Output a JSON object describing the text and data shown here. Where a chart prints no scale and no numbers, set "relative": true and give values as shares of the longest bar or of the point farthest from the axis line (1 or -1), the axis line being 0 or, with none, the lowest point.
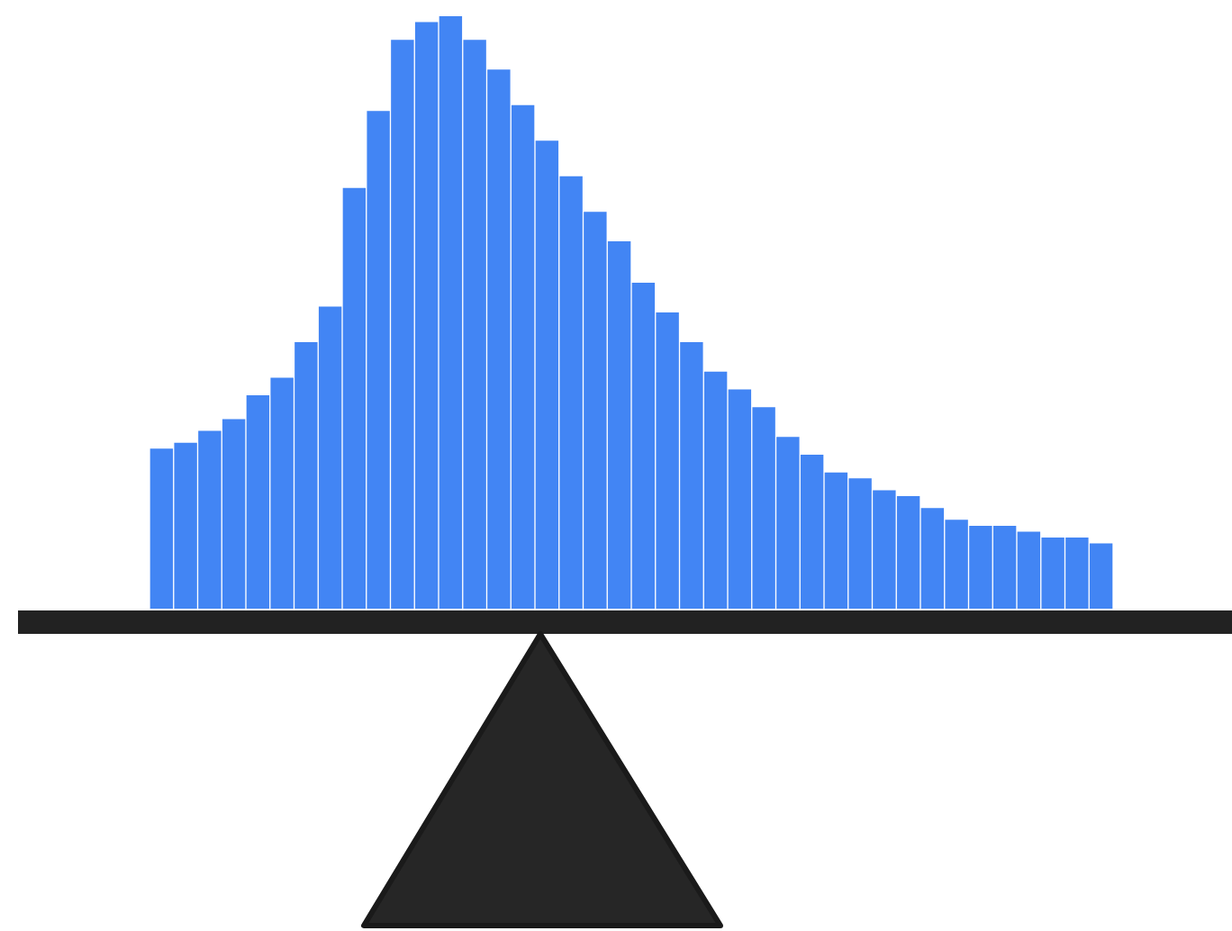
{
  "chart_data": {
    "type": "bar",
    "relative": true,
    "categories": [
      null,
      null,
      null,
      null,
      null,
      null,
      null,
      null,
      null,
      null,
      null,
      null,
      null,
      null,
      null,
      null,
      null,
      null,
      null,
      null,
      null,
      null,
      null,
      null,
      null,
      null,
      null,
      null,
      null,
      null,
      null,
      null,
      null,
      null,
      null,
      null,
      null,
      null,
      null,
      null
    ],
    "values": [
      0.27,
      0.28,
      0.3,
      0.32,
      0.36,
      0.39,
      0.45,
      0.51,
      0.71,
      0.84,
      0.96,
      0.99,
      1,
      0.96,
      0.91,
      0.85,
      0.79,
      0.73,
      0.67,
      0.62,
      0.55,
      0.5,
      0.45,
      0.4,
      0.37,
      0.34,
      0.29,
      0.26,
      0.23,
      0.22,
      0.2,
      0.19,
      0.17,
      0.15,
      0.14,
      0.14,
      0.13,
      0.12,
      0.12,
      0.11
    ],
    "color": "#4285f4",
    "legend": false
  }
}
